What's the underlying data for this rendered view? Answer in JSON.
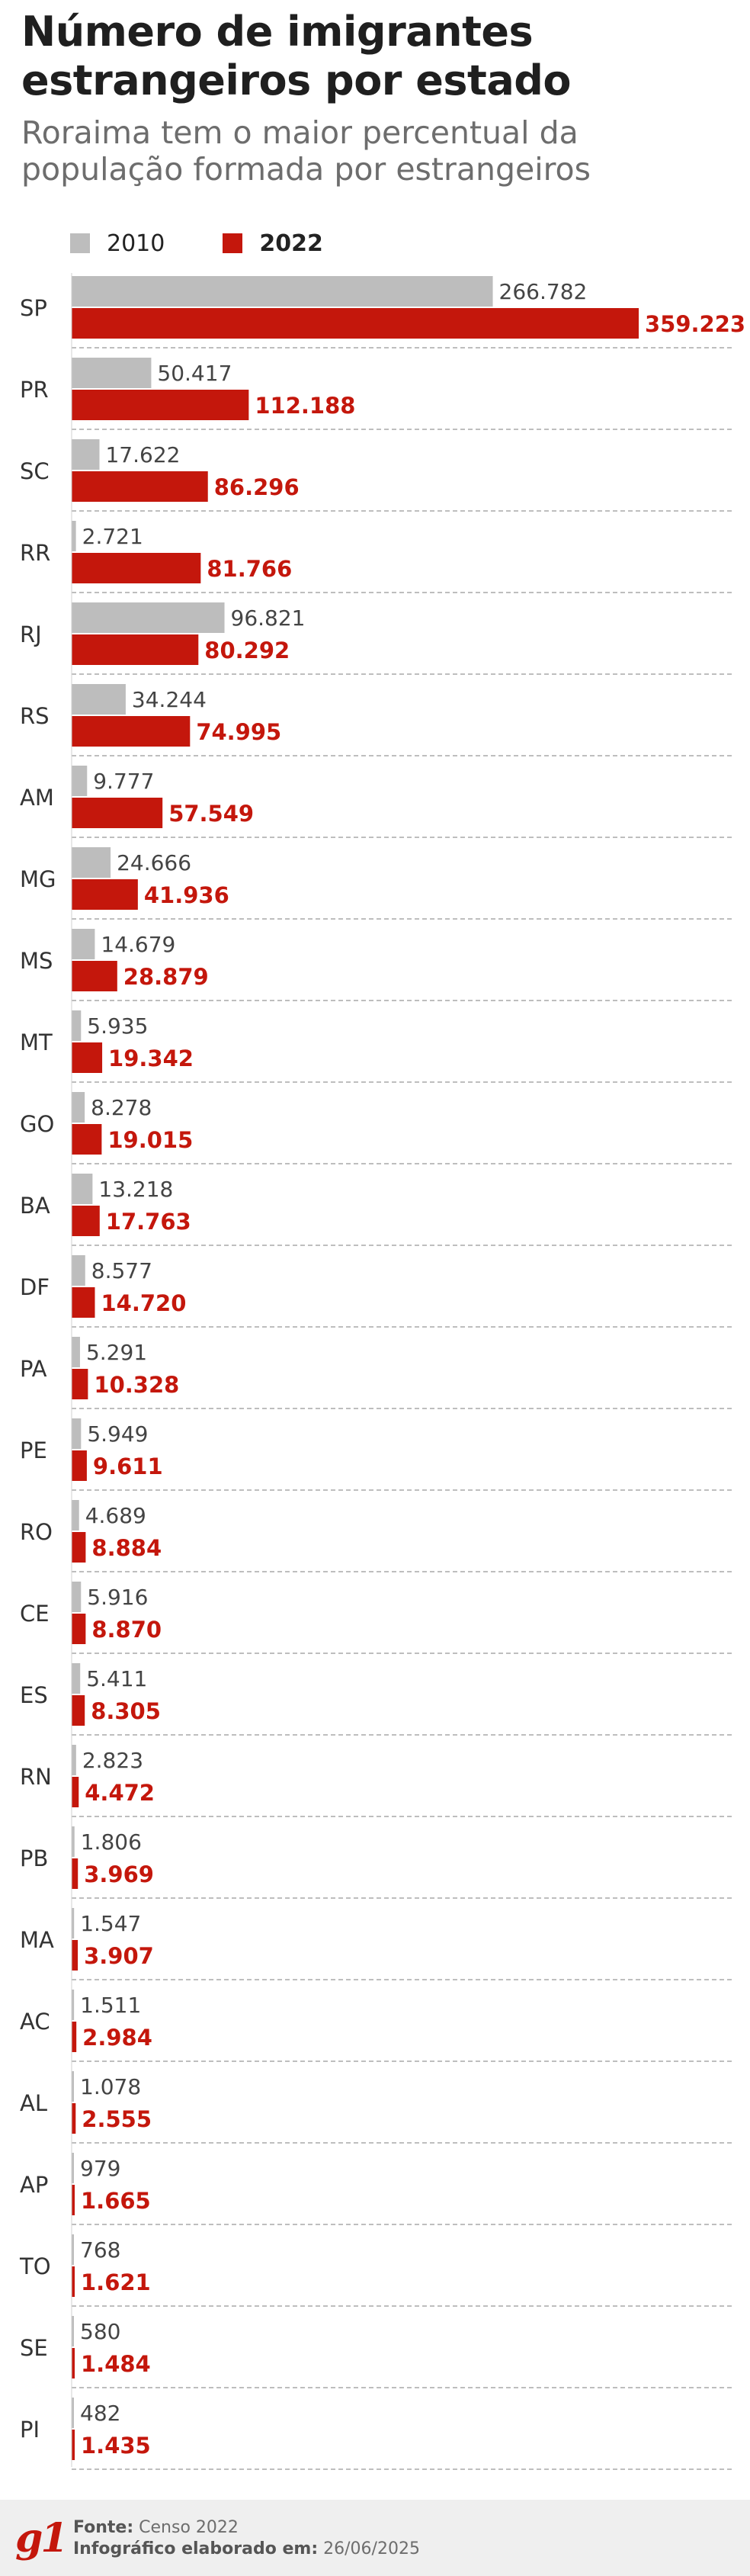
{
  "header": {
    "title": "Número de imigrantes estrangeiros por estado",
    "subtitle": "Roraima tem o maior percentual da população formada por estrangeiros"
  },
  "legend": [
    {
      "label": "2010",
      "color": "#bdbdbd"
    },
    {
      "label": "2022",
      "color": "#c4170c"
    }
  ],
  "chart_data": {
    "type": "bar",
    "orientation": "horizontal",
    "title": "Número de imigrantes estrangeiros por estado",
    "subtitle": "Roraima tem o maior percentual da população formada por estrangeiros",
    "xlabel": "",
    "ylabel": "",
    "xlim": [
      0,
      359223
    ],
    "legend_position": "top-left",
    "categories": [
      "SP",
      "PR",
      "SC",
      "RR",
      "RJ",
      "RS",
      "AM",
      "MG",
      "MS",
      "MT",
      "GO",
      "BA",
      "DF",
      "PA",
      "PE",
      "RO",
      "CE",
      "ES",
      "RN",
      "PB",
      "MA",
      "AC",
      "AL",
      "AP",
      "TO",
      "SE",
      "PI"
    ],
    "series": [
      {
        "name": "2010",
        "color": "#bdbdbd",
        "values": [
          266782,
          50417,
          17622,
          2721,
          96821,
          34244,
          9777,
          24666,
          14679,
          5935,
          8278,
          13218,
          8577,
          5291,
          5949,
          4689,
          5916,
          5411,
          2823,
          1806,
          1547,
          1511,
          1078,
          979,
          768,
          580,
          482
        ],
        "labels": [
          "266.782",
          "50.417",
          "17.622",
          "2.721",
          "96.821",
          "34.244",
          "9.777",
          "24.666",
          "14.679",
          "5.935",
          "8.278",
          "13.218",
          "8.577",
          "5.291",
          "5.949",
          "4.689",
          "5.916",
          "5.411",
          "2.823",
          "1.806",
          "1.547",
          "1.511",
          "1.078",
          "979",
          "768",
          "580",
          "482"
        ]
      },
      {
        "name": "2022",
        "color": "#c4170c",
        "values": [
          359223,
          112188,
          86296,
          81766,
          80292,
          74995,
          57549,
          41936,
          28879,
          19342,
          19015,
          17763,
          14720,
          10328,
          9611,
          8884,
          8870,
          8305,
          4472,
          3969,
          3907,
          2984,
          2555,
          1665,
          1621,
          1484,
          1435
        ],
        "labels": [
          "359.223",
          "112.188",
          "86.296",
          "81.766",
          "80.292",
          "74.995",
          "57.549",
          "41.936",
          "28.879",
          "19.342",
          "19.015",
          "17.763",
          "14.720",
          "10.328",
          "9.611",
          "8.884",
          "8.870",
          "8.305",
          "4.472",
          "3.969",
          "3.907",
          "2.984",
          "2.555",
          "1.665",
          "1.621",
          "1.484",
          "1.435"
        ]
      }
    ]
  },
  "footer": {
    "logo": "g1",
    "source_label": "Fonte:",
    "source_value": "Censo 2022",
    "date_label": "Infográfico elaborado em:",
    "date_value": "26/06/2025"
  }
}
